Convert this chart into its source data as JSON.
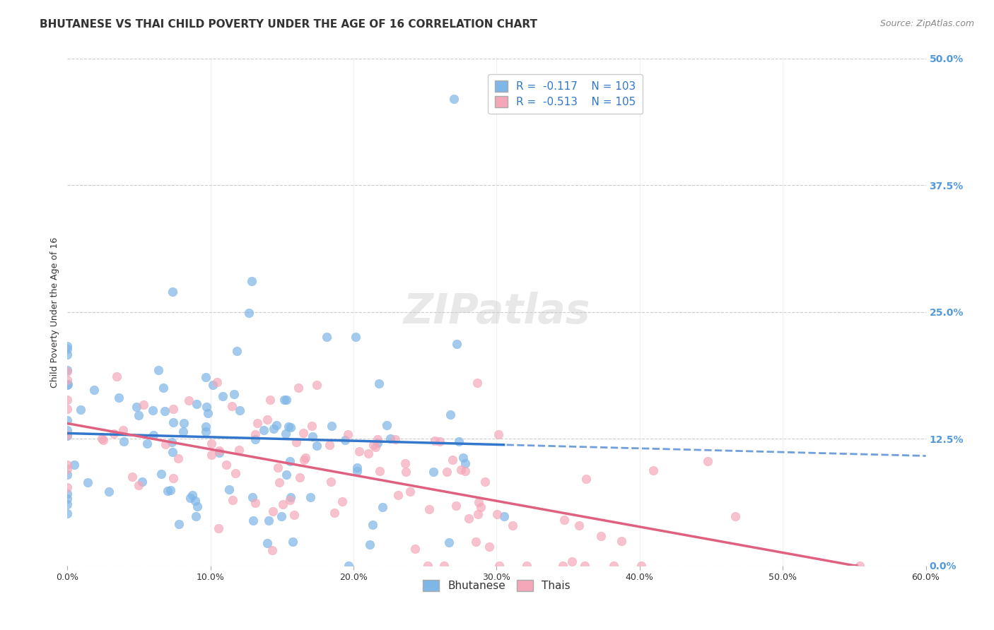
{
  "title": "BHUTANESE VS THAI CHILD POVERTY UNDER THE AGE OF 16 CORRELATION CHART",
  "source": "Source: ZipAtlas.com",
  "ylabel": "Child Poverty Under the Age of 16",
  "xlabel_ticks": [
    "0.0%",
    "10.0%",
    "20.0%",
    "30.0%",
    "40.0%",
    "50.0%",
    "60.0%"
  ],
  "xlabel_vals": [
    0.0,
    0.1,
    0.2,
    0.3,
    0.4,
    0.5,
    0.6
  ],
  "ylabel_ticks": [
    "0.0%",
    "12.5%",
    "25.0%",
    "37.5%",
    "50.0%"
  ],
  "ylabel_vals": [
    0.0,
    0.125,
    0.25,
    0.375,
    0.5
  ],
  "xlim": [
    0.0,
    0.6
  ],
  "ylim": [
    0.0,
    0.5
  ],
  "bhutanese_color": "#7EB6E8",
  "thais_color": "#F4A7B9",
  "trend_blue": "#3377CC",
  "trend_pink": "#E06080",
  "watermark": "ZIPatlas",
  "legend_R_bhutanese": "R =  -0.117",
  "legend_N_bhutanese": "N = 103",
  "legend_R_thais": "R =  -0.513",
  "legend_N_thais": "N = 105",
  "bhutanese_seed": 42,
  "thais_seed": 99,
  "bhutanese_n": 103,
  "thais_n": 105,
  "bhutanese_R": -0.117,
  "thais_R": -0.513,
  "title_fontsize": 11,
  "axis_label_fontsize": 9,
  "tick_fontsize": 9,
  "legend_fontsize": 11,
  "source_fontsize": 9,
  "watermark_fontsize": 42,
  "marker_size": 80,
  "background_color": "#FFFFFF",
  "grid_color": "#CCCCCC",
  "tick_color_right": "#5599DD"
}
